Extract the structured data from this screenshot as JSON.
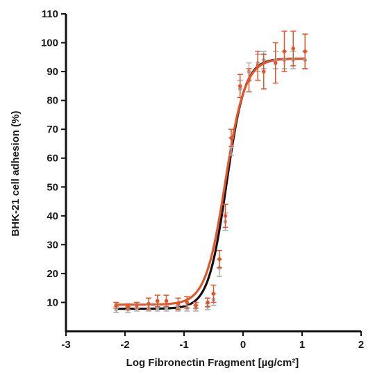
{
  "chart_data": {
    "type": "scatter",
    "title": "",
    "xlabel": "Log Fibronectin Fragment  [µg/cm²]",
    "ylabel": "BHK-21 cell adhesion (%)",
    "xlim": [
      -3,
      2
    ],
    "ylim": [
      0,
      110
    ],
    "x_ticks": [
      "-3",
      "-2",
      "-1",
      "0",
      "1",
      "2"
    ],
    "y_ticks": [
      "10",
      "20",
      "30",
      "40",
      "50",
      "60",
      "70",
      "80",
      "90",
      "100",
      "110"
    ],
    "grid": false,
    "legend": "none",
    "series": [
      {
        "color": "#e2562c",
        "marker": "circle",
        "x": [
          -2.15,
          -1.95,
          -1.8,
          -1.6,
          -1.45,
          -1.3,
          -1.1,
          -0.95,
          -0.8,
          -0.6,
          -0.5,
          -0.4,
          -0.3,
          -0.2,
          -0.05,
          0.1,
          0.25,
          0.35,
          0.55,
          0.7,
          0.85,
          1.05
        ],
        "y": [
          9,
          8.5,
          9,
          9.5,
          10.5,
          10.5,
          9.5,
          10,
          9,
          10,
          13,
          25,
          40,
          67,
          85,
          87,
          92,
          90,
          93,
          97,
          98,
          97
        ],
        "error": [
          1,
          1,
          1,
          2,
          2,
          2,
          2,
          2,
          1,
          1.5,
          3,
          3,
          4,
          3,
          4,
          4,
          5,
          6,
          7,
          7,
          6,
          6
        ],
        "fit": {
          "bottom": 9.2,
          "top": 94.5,
          "logEC50": -0.3,
          "hill": 2.6
        }
      },
      {
        "color": "#a8adb0",
        "marker": "circle",
        "x": [
          -2.15,
          -1.95,
          -1.8,
          -1.6,
          -1.45,
          -1.3,
          -1.1,
          -0.95,
          -0.8,
          -0.6,
          -0.5,
          -0.4,
          -0.3,
          -0.2,
          -0.05,
          0.1,
          0.25,
          0.35,
          0.55,
          0.7,
          0.85,
          1.05
        ],
        "y": [
          7.5,
          7.5,
          8,
          8,
          8,
          8,
          8,
          8,
          8,
          8.5,
          11,
          22,
          38,
          64,
          84,
          90,
          93,
          94,
          94,
          94,
          94,
          94
        ],
        "error": [
          1,
          1,
          1,
          1,
          1,
          1,
          1,
          1,
          1,
          1,
          2,
          3,
          3,
          3,
          3,
          3,
          3,
          3,
          3,
          3,
          3,
          3
        ],
        "fit": {
          "bottom": 7.8,
          "top": 94.5,
          "logEC50": -0.28,
          "hill": 2.8,
          "line_color": "#111111"
        }
      }
    ]
  }
}
